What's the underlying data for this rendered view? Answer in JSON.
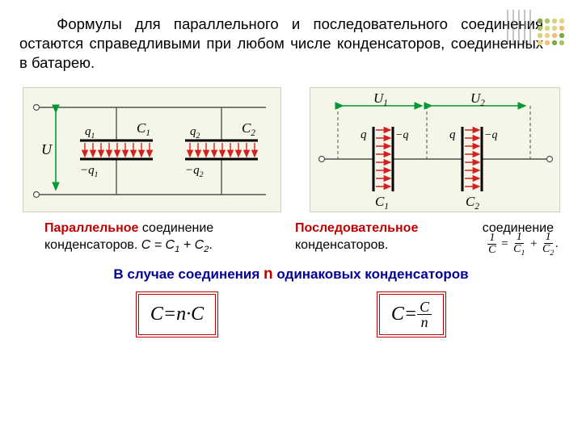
{
  "intro": "Формулы для параллельного и последовательного соединения остаются справедливыми при любом числе конденсаторов, соединенных в батарею.",
  "deco": {
    "line_colors": [
      "#888888",
      "#888888",
      "#888888",
      "#888888",
      "#888888"
    ],
    "dot_colors": [
      "#7fa84a",
      "#a8c468",
      "#d4d47a",
      "#e8d088",
      "#f0c078"
    ]
  },
  "diagram_parallel": {
    "bg": "#f5f5e8",
    "wire_color": "#505050",
    "arrow_color": "#009933",
    "plate_color": "#000000",
    "field_color": "#d62020",
    "labels": {
      "U": "U",
      "q1": "q",
      "mq1": "−q",
      "C1": "C",
      "q2": "q",
      "mq2": "−q",
      "C2": "C"
    },
    "subs": {
      "q1": "1",
      "mq1": "1",
      "C1": "1",
      "q2": "2",
      "mq2": "2",
      "C2": "2"
    }
  },
  "diagram_series": {
    "bg": "#f5f5e8",
    "wire_color": "#505050",
    "arrow_color": "#009933",
    "plate_color": "#000000",
    "field_color": "#d62020",
    "labels": {
      "U1": "U",
      "U2": "U",
      "q": "q",
      "mq": "−q",
      "C1": "C",
      "C2": "C"
    },
    "subs": {
      "U1": "1",
      "U2": "2",
      "C1": "1",
      "C2": "2"
    }
  },
  "caption_left": {
    "kw": "Параллельное",
    "rest": " соединение конденсаторов. ",
    "formula_prefix": "C = C",
    "s1": "1",
    "mid": " + C",
    "s2": "2",
    "dot": "."
  },
  "caption_right": {
    "kw": "Последовательное",
    "rest": " соединение конденсаторов."
  },
  "series_formula": {
    "lhs_num": "1",
    "lhs_den": "C",
    "eq": " = ",
    "t1_num": "1",
    "t1_den": "C",
    "t1_sub": "1",
    "plus": " + ",
    "t2_num": "1",
    "t2_den": "C",
    "t2_sub": "2",
    "dot": "."
  },
  "footer": {
    "pre": "В случае соединения ",
    "n": "n",
    "post": " одинаковых конденсаторов"
  },
  "formula_parallel": {
    "lhs": "C",
    "eq": " = ",
    "n": "n",
    "dot": " · ",
    "rhs": "C"
  },
  "formula_series": {
    "lhs": "C",
    "eq": " = ",
    "num": "C",
    "den": "n"
  }
}
